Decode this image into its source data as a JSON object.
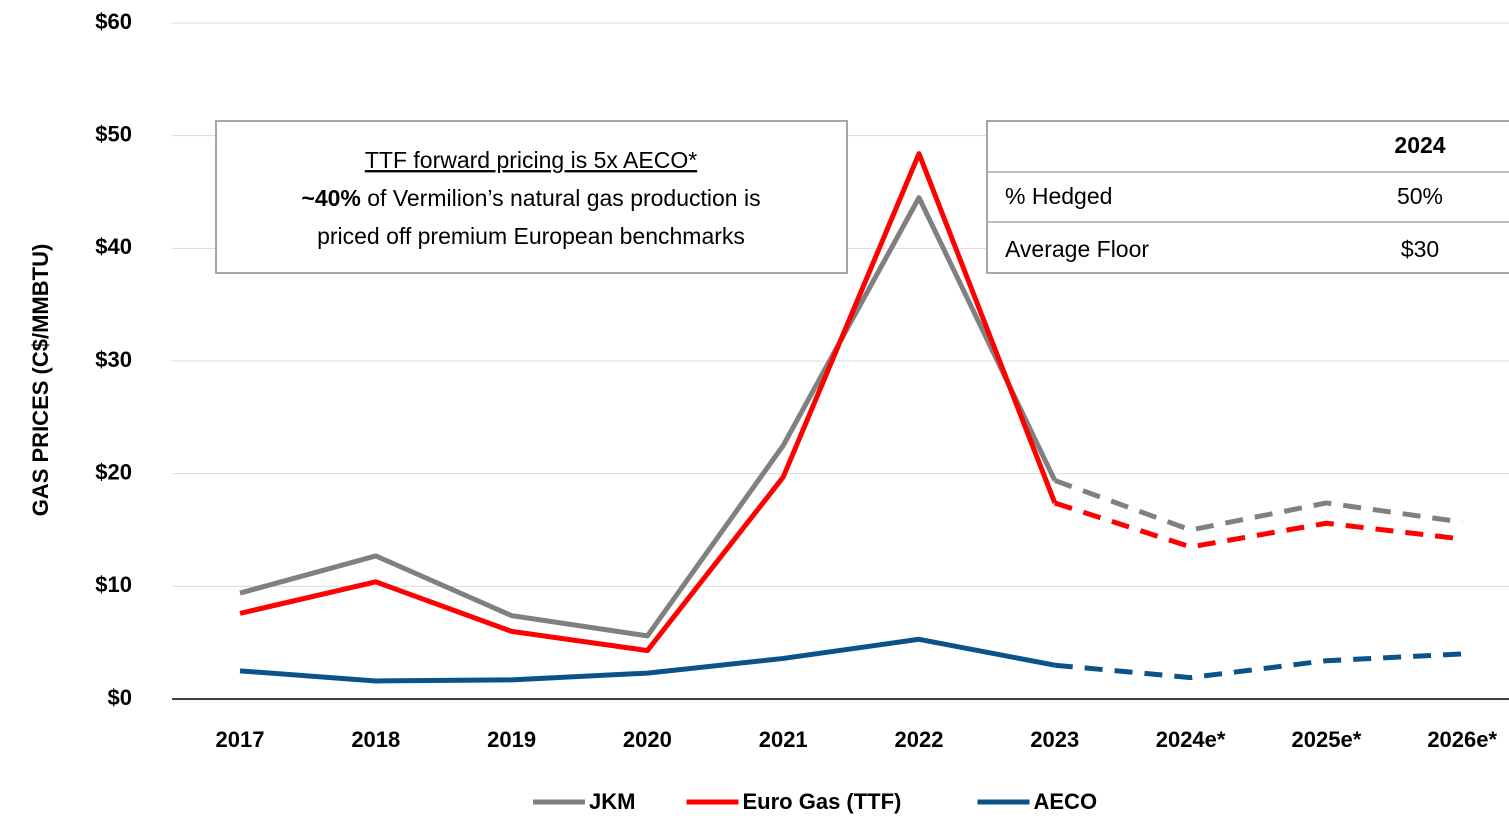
{
  "chart_data": {
    "type": "line",
    "y_label": "GAS PRICES (C$/MMBTU)",
    "categories": [
      "2017",
      "2018",
      "2019",
      "2020",
      "2021",
      "2022",
      "2023",
      "2024e*",
      "2025e*",
      "2026e*"
    ],
    "dashed_from": 6,
    "series": [
      {
        "name": "JKM",
        "color": "#808080",
        "values": [
          9.4,
          12.7,
          7.4,
          5.6,
          22.5,
          44.5,
          19.4,
          15.0,
          17.4,
          15.7
        ]
      },
      {
        "name": "Euro Gas (TTF)",
        "color": "#ff0000",
        "values": [
          7.6,
          10.4,
          6.0,
          4.3,
          19.7,
          48.4,
          17.4,
          13.5,
          15.6,
          14.2
        ]
      },
      {
        "name": "AECO",
        "color": "#0b5289",
        "values": [
          2.5,
          1.6,
          1.7,
          2.3,
          3.6,
          5.3,
          3.0,
          1.9,
          3.4,
          4.0
        ]
      }
    ],
    "ylim": [
      0,
      60
    ],
    "yticks": [
      {
        "value": 0,
        "label": "$0"
      },
      {
        "value": 10,
        "label": "$10"
      },
      {
        "value": 20,
        "label": "$20"
      },
      {
        "value": 30,
        "label": "$30"
      },
      {
        "value": 40,
        "label": "$40"
      },
      {
        "value": 50,
        "label": "$50"
      },
      {
        "value": 60,
        "label": "$60"
      }
    ],
    "grid": true,
    "legend": "bottom",
    "annotation": {
      "line1": "TTF forward pricing is 5x AECO*",
      "line2_bold": "~40%",
      "line2_rest": " of Vermilion’s natural gas production is",
      "line3": "priced off premium European benchmarks"
    },
    "hedge_table": {
      "header": "2024",
      "rows": [
        [
          "% Hedged",
          "50%"
        ],
        [
          "Average Floor",
          "$30"
        ]
      ]
    }
  }
}
